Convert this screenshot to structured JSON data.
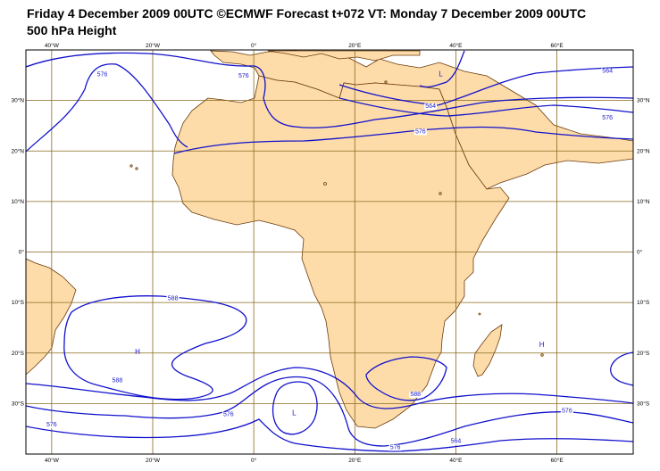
{
  "header": {
    "title_line1": "Friday 4 December 2009 00UTC ©ECMWF Forecast t+072 VT: Monday 7 December 2009 00UTC",
    "title_line2": "500 hPa Height"
  },
  "map": {
    "projection": "lat-lon",
    "lon_range": [
      -45,
      75
    ],
    "lat_range": [
      -40,
      40
    ],
    "colors": {
      "land": "#fddcaa",
      "coast": "#6b3a0a",
      "contours": "#1111cc",
      "grid": "#8a6a1e"
    },
    "lon_ticks": [
      {
        "value": -40,
        "label": "40°W"
      },
      {
        "value": -20,
        "label": "20°W"
      },
      {
        "value": 0,
        "label": "0°"
      },
      {
        "value": 20,
        "label": "20°E"
      },
      {
        "value": 40,
        "label": "40°E"
      },
      {
        "value": 60,
        "label": "60°E"
      }
    ],
    "lat_ticks": [
      {
        "value": 30,
        "label": "30°N"
      },
      {
        "value": 20,
        "label": "20°N"
      },
      {
        "value": 10,
        "label": "10°N"
      },
      {
        "value": 0,
        "label": "0°"
      },
      {
        "value": -10,
        "label": "10°S"
      },
      {
        "value": -20,
        "label": "20°S"
      },
      {
        "value": -30,
        "label": "30°S"
      }
    ],
    "contour_labels": [
      {
        "text": "576",
        "lon": -30,
        "lat": 34.8
      },
      {
        "text": "576",
        "lon": -2,
        "lat": 34.5
      },
      {
        "text": "564",
        "lon": 70,
        "lat": 35.5
      },
      {
        "text": "564",
        "lon": 35,
        "lat": 28.5
      },
      {
        "text": "576",
        "lon": 33,
        "lat": 23.5
      },
      {
        "text": "576",
        "lon": 70,
        "lat": 26.2
      },
      {
        "text": "588",
        "lon": -16,
        "lat": -9.5
      },
      {
        "text": "588",
        "lon": -27,
        "lat": -25.8
      },
      {
        "text": "576",
        "lon": -5,
        "lat": -32.5
      },
      {
        "text": "588",
        "lon": 32,
        "lat": -28.5
      },
      {
        "text": "576",
        "lon": -40,
        "lat": -34.5
      },
      {
        "text": "576",
        "lon": 62,
        "lat": -31.8
      },
      {
        "text": "576",
        "lon": 28,
        "lat": -39
      },
      {
        "text": "564",
        "lon": 40,
        "lat": -37.8
      }
    ],
    "pressure_centers": [
      {
        "text": "L",
        "lon": 37,
        "lat": 34.8
      },
      {
        "text": "H",
        "lon": -23,
        "lat": -20.2
      },
      {
        "text": "L",
        "lon": 8,
        "lat": -32.3
      },
      {
        "text": "H",
        "lon": 57,
        "lat": -18.8
      }
    ]
  }
}
